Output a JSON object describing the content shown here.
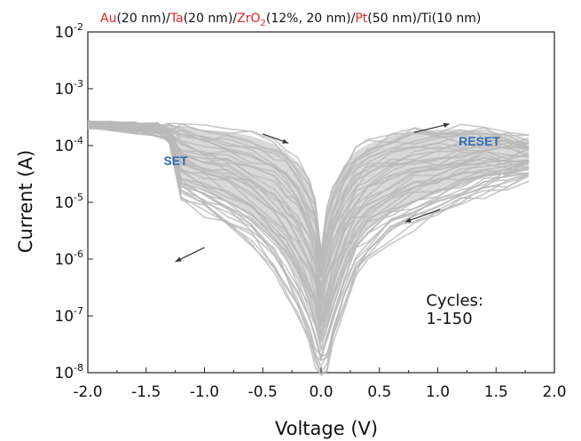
{
  "chart_data": {
    "type": "line",
    "title_segments": [
      {
        "text": "Au",
        "color": "#e0262b"
      },
      {
        "text": "(20 nm)/",
        "color": "#111111"
      },
      {
        "text": "Ta",
        "color": "#e0262b"
      },
      {
        "text": "(20 nm)/",
        "color": "#111111"
      },
      {
        "text": "ZrO",
        "color": "#e0262b"
      },
      {
        "text": "2",
        "color": "#e0262b",
        "subscript": true
      },
      {
        "text": "(12%, 20 nm)/",
        "color": "#111111"
      },
      {
        "text": "Pt",
        "color": "#e0262b"
      },
      {
        "text": "(50 nm)/Ti(10 nm)",
        "color": "#111111"
      }
    ],
    "xlabel": "Voltage (V)",
    "ylabel": "Current (A)",
    "xlim": [
      -2.0,
      2.0
    ],
    "ylim": [
      1e-08,
      0.01
    ],
    "yscale": "log",
    "x_ticks": [
      "-2.0",
      "-1.5",
      "-1.0",
      "-0.5",
      "0.0",
      "0.5",
      "1.0",
      "1.5",
      "2.0"
    ],
    "y_ticks": [
      {
        "base": "10",
        "exp": "-8",
        "value": 1e-08
      },
      {
        "base": "10",
        "exp": "-7",
        "value": 1e-07
      },
      {
        "base": "10",
        "exp": "-6",
        "value": 1e-06
      },
      {
        "base": "10",
        "exp": "-5",
        "value": 1e-05
      },
      {
        "base": "10",
        "exp": "-4",
        "value": 0.0001
      },
      {
        "base": "10",
        "exp": "-3",
        "value": 0.001
      },
      {
        "base": "10",
        "exp": "-2",
        "value": 0.01
      }
    ],
    "grid": false,
    "series_color": "#b9b9b9",
    "cycles": 150,
    "envelope": {
      "voltage": [
        -2.0,
        -1.8,
        -1.6,
        -1.4,
        -1.3,
        -1.2,
        -1.0,
        -0.8,
        -0.6,
        -0.4,
        -0.3,
        -0.2,
        -0.1,
        -0.05,
        0.0,
        0.05,
        0.1,
        0.2,
        0.3,
        0.4,
        0.6,
        0.8,
        1.0,
        1.2,
        1.4,
        1.6,
        1.78
      ],
      "lower_current": [
        0.00024,
        0.00022,
        0.000195,
        0.00017,
        0.00012,
        1.2e-05,
        6.5e-06,
        3.8e-06,
        1.8e-06,
        6e-07,
        2.5e-07,
        1e-07,
        3e-08,
        1.5e-08,
        9e-09,
        1.2e-08,
        3e-08,
        1.5e-07,
        5e-07,
        1e-06,
        2.2e-06,
        3.8e-06,
        5.8e-06,
        9.5e-06,
        1.4e-05,
        1.9e-05,
        2.6e-05
      ],
      "upper_current": [
        0.00024,
        0.000235,
        0.00023,
        0.000225,
        0.00022,
        0.000215,
        0.000205,
        0.00019,
        0.00016,
        0.000115,
        8.5e-05,
        5.5e-05,
        2.5e-05,
        1.2e-05,
        1.5e-06,
        8e-06,
        2e-05,
        5e-05,
        8.5e-05,
        0.000115,
        0.00016,
        0.00019,
        0.00021,
        0.00021,
        0.00019,
        0.00016,
        0.00014
      ]
    },
    "sweep_arrows": [
      {
        "from": [
          -0.5,
          0.00016
        ],
        "to": [
          -0.28,
          0.00011
        ]
      },
      {
        "from": [
          0.8,
          0.00017
        ],
        "to": [
          1.1,
          0.00024
        ]
      },
      {
        "from": [
          1.02,
          7.5e-06
        ],
        "to": [
          0.72,
          4.5e-06
        ]
      },
      {
        "from": [
          -1.0,
          1.6e-06
        ],
        "to": [
          -1.25,
          9e-07
        ]
      }
    ],
    "annotations": [
      {
        "text": "SET",
        "x": -1.35,
        "y": 4.5e-05,
        "style": "blue"
      },
      {
        "text": "RESET",
        "x": 1.18,
        "y": 0.0001,
        "style": "blue"
      },
      {
        "text": "Cycles:",
        "x": 0.9,
        "y": 1.5e-07,
        "style": "black"
      },
      {
        "text": "1-150",
        "x": 0.9,
        "y": 7.2e-08,
        "style": "black"
      }
    ]
  }
}
